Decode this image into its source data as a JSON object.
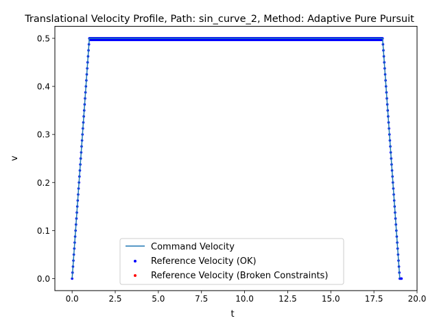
{
  "chart_data": {
    "type": "line",
    "title": "Translational Velocity Profile, Path: sin_curve_2, Method: Adaptive Pure Pursuit",
    "xlabel": "t",
    "ylabel": "v",
    "xlim": [
      -1.0,
      20.0
    ],
    "ylim": [
      -0.025,
      0.525
    ],
    "xticks": [
      0.0,
      2.5,
      5.0,
      7.5,
      10.0,
      12.5,
      15.0,
      17.5,
      20.0
    ],
    "xtick_labels": [
      "0.0",
      "2.5",
      "5.0",
      "7.5",
      "10.0",
      "12.5",
      "15.0",
      "17.5",
      "20.0"
    ],
    "yticks": [
      0.0,
      0.1,
      0.2,
      0.3,
      0.4,
      0.5
    ],
    "ytick_labels": [
      "0.0",
      "0.1",
      "0.2",
      "0.3",
      "0.4",
      "0.5"
    ],
    "grid": false,
    "legend_position": "bottom-center",
    "series": [
      {
        "name": "Command Velocity",
        "kind": "line",
        "color": "#1f77b4",
        "x": [
          0.0,
          1.0,
          18.0,
          19.0
        ],
        "y": [
          0.0,
          0.5,
          0.5,
          0.0
        ]
      },
      {
        "name": "Reference Velocity (OK)",
        "kind": "scatter",
        "color": "#0000ff",
        "profile": {
          "t_start": 0.0,
          "t_accel_end": 1.0,
          "t_decel_start": 18.0,
          "t_end": 19.0,
          "v_max": 0.5,
          "dt": 0.025,
          "v_lower": 0.497
        }
      },
      {
        "name": "Reference Velocity (Broken Constraints)",
        "kind": "scatter",
        "color": "#ff0000",
        "x": [],
        "y": []
      }
    ]
  }
}
